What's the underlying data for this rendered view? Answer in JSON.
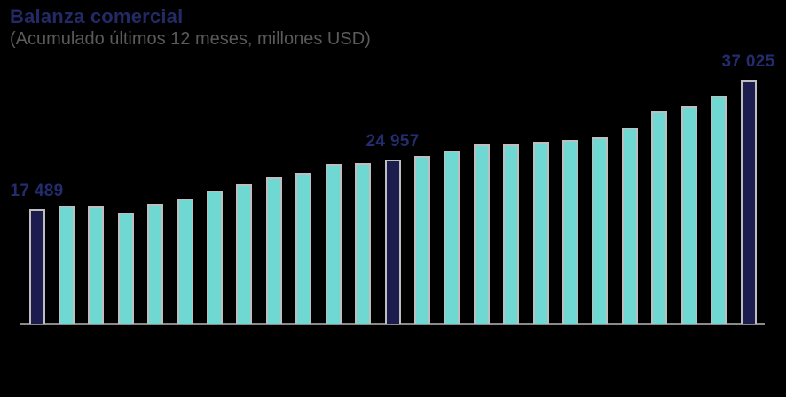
{
  "header": {
    "title": "Balanza comercial",
    "subtitle": "(Acumulado últimos 12 meses, millones USD)"
  },
  "colors": {
    "background": "#000000",
    "title": "#242A66",
    "subtitle": "#5A5A5A",
    "bar_teal": "#6FD8D2",
    "bar_navy": "#1C1C4E",
    "bar_border": "#BEBEBE",
    "axis_line": "#8A8A8A",
    "data_label": "#232C6E"
  },
  "chart_data": {
    "type": "bar",
    "title": "Balanza comercial",
    "subtitle": "(Acumulado últimos 12 meses, millones USD)",
    "xlabel": "",
    "ylabel": "",
    "ylim": [
      0,
      40000
    ],
    "grid": false,
    "y_axis_visible": false,
    "x_tick_labels_visible": false,
    "values": [
      17489,
      17950,
      17800,
      16900,
      18200,
      19000,
      20200,
      21200,
      22300,
      22950,
      24250,
      24400,
      24957,
      25500,
      26300,
      27200,
      27300,
      27700,
      27900,
      28350,
      29800,
      32350,
      33000,
      34600,
      37025
    ],
    "highlighted_indices": [
      0,
      12,
      24
    ],
    "data_labels": [
      {
        "index": 0,
        "text": "17 489"
      },
      {
        "index": 12,
        "text": "24 957"
      },
      {
        "index": 24,
        "text": "37 025"
      }
    ]
  }
}
